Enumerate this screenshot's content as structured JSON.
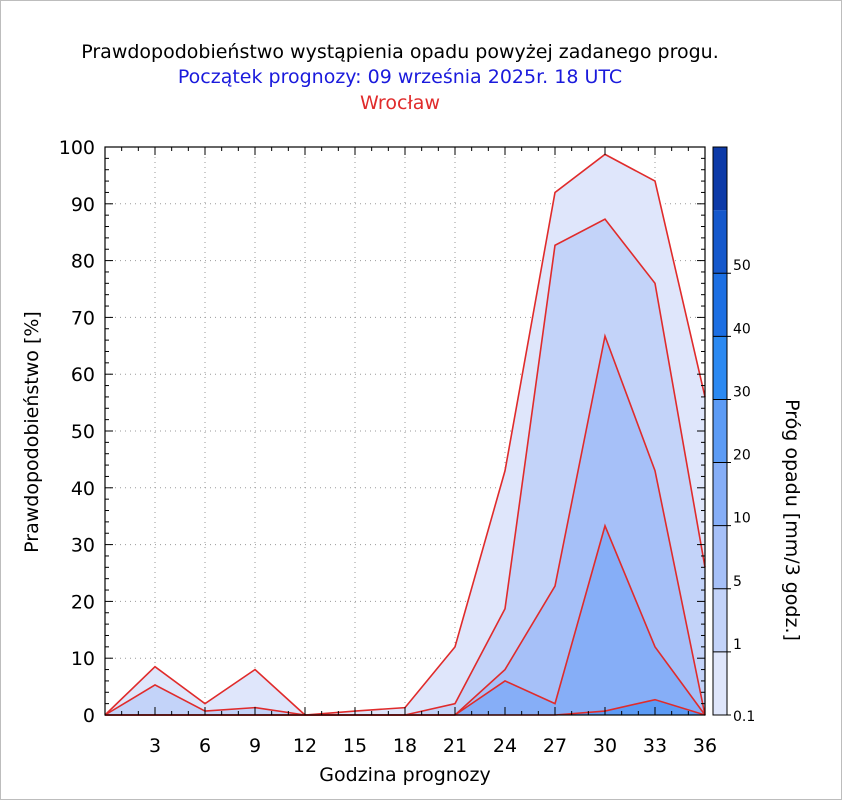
{
  "title": "Prawdopodobieństwo wystąpienia opadu powyżej zadanego progu.",
  "subtitle": "Początek prognozy: 09 września 2025r. 18 UTC",
  "location": "Wrocław",
  "colors": {
    "title": "#000000",
    "subtitle": "#1a1adc",
    "location": "#e02b2b",
    "outline": "#e02b2b",
    "bands": [
      "#dfe6fb",
      "#c3d3f9",
      "#a6c0f8",
      "#86aef7",
      "#5c9bf5",
      "#2b89f1",
      "#1c6fe3",
      "#1558cc",
      "#0d3aa8"
    ]
  },
  "chart_data": {
    "type": "area",
    "title": "Prawdopodobieństwo wystąpienia opadu powyżej zadanego progu.",
    "xlabel": "Godzina prognozy",
    "ylabel": "Prawdopodobieństwo [%]",
    "xlim": [
      0,
      36
    ],
    "ylim": [
      0,
      100
    ],
    "xticks": [
      3,
      6,
      9,
      12,
      15,
      18,
      21,
      24,
      27,
      30,
      33,
      36
    ],
    "yticks": [
      0,
      10,
      20,
      30,
      40,
      50,
      60,
      70,
      80,
      90,
      100
    ],
    "grid": true,
    "x": [
      0,
      3,
      6,
      9,
      12,
      15,
      18,
      21,
      24,
      27,
      30,
      33,
      36
    ],
    "series": [
      {
        "name": "0.1",
        "values": [
          0,
          8.5,
          2,
          8,
          0,
          0.7,
          1.3,
          12,
          43,
          92,
          98.7,
          94,
          56
        ]
      },
      {
        "name": "1",
        "values": [
          0,
          5.3,
          0.7,
          1.3,
          0,
          0,
          0,
          2,
          18.7,
          82.7,
          87.3,
          76,
          26
        ]
      },
      {
        "name": "5",
        "values": [
          0,
          0,
          0,
          0,
          0,
          0,
          0,
          0,
          8,
          22.7,
          66.7,
          43,
          0
        ]
      },
      {
        "name": "10",
        "values": [
          0,
          0,
          0,
          0,
          0,
          0,
          0,
          0,
          6,
          2,
          33.3,
          12,
          0
        ]
      },
      {
        "name": "20",
        "values": [
          0,
          0,
          0,
          0,
          0,
          0,
          0,
          0,
          0,
          0,
          0.7,
          2.7,
          0
        ]
      },
      {
        "name": "30",
        "values": [
          0,
          0,
          0,
          0,
          0,
          0,
          0,
          0,
          0,
          0,
          0,
          0,
          0
        ]
      },
      {
        "name": "40",
        "values": [
          0,
          0,
          0,
          0,
          0,
          0,
          0,
          0,
          0,
          0,
          0,
          0,
          0
        ]
      },
      {
        "name": "50",
        "values": [
          0,
          0,
          0,
          0,
          0,
          0,
          0,
          0,
          0,
          0,
          0,
          0,
          0
        ]
      }
    ],
    "colorbar": {
      "label": "Próg opadu [mm/3 godz.]",
      "ticks": [
        "0.1",
        "1",
        "5",
        "10",
        "20",
        "30",
        "40",
        "50"
      ]
    }
  }
}
